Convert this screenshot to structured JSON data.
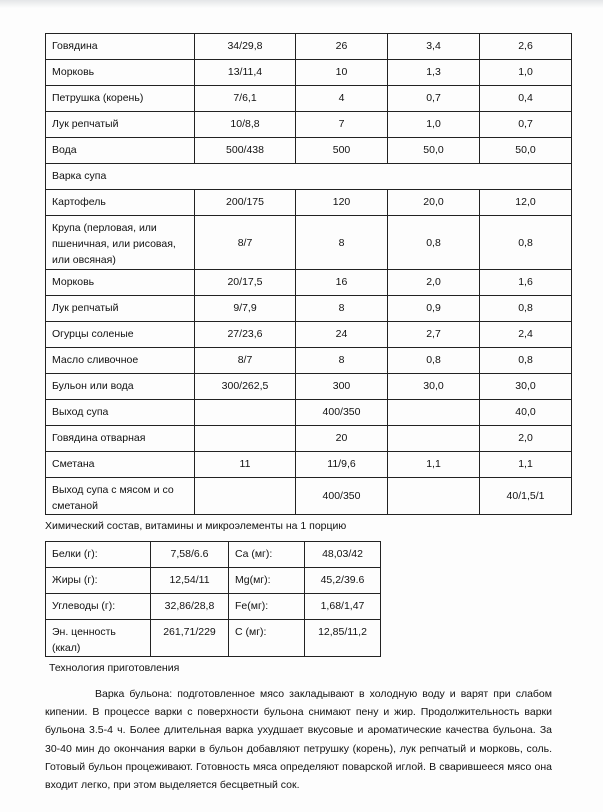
{
  "main_table": {
    "rows": [
      {
        "name": "Говядина",
        "brutto_netto": "34/29,8",
        "v1": "26",
        "v2": "3,4",
        "v3": "2,6"
      },
      {
        "name": "Морковь",
        "brutto_netto": "13/11,4",
        "v1": "10",
        "v2": "1,3",
        "v3": "1,0"
      },
      {
        "name": "Петрушка (корень)",
        "brutto_netto": "7/6,1",
        "v1": "4",
        "v2": "0,7",
        "v3": "0,4"
      },
      {
        "name": "Лук репчатый",
        "brutto_netto": "10/8,8",
        "v1": "7",
        "v2": "1,0",
        "v3": "0,7"
      },
      {
        "name": "Вода",
        "brutto_netto": "500/438",
        "v1": "500",
        "v2": "50,0",
        "v3": "50,0"
      },
      {
        "section": "Варка супа"
      },
      {
        "name": "Картофель",
        "brutto_netto": "200/175",
        "v1": "120",
        "v2": "20,0",
        "v3": "12,0"
      },
      {
        "name": "Крупа (перловая, или пшеничная, или рисовая, или овсяная)",
        "brutto_netto": "8/7",
        "v1": "8",
        "v2": "0,8",
        "v3": "0,8"
      },
      {
        "name": "Морковь",
        "brutto_netto": "20/17,5",
        "v1": "16",
        "v2": "2,0",
        "v3": "1,6"
      },
      {
        "name": "Лук репчатый",
        "brutto_netto": "9/7,9",
        "v1": "8",
        "v2": "0,9",
        "v3": "0,8"
      },
      {
        "name": "Огурцы соленые",
        "brutto_netto": "27/23,6",
        "v1": "24",
        "v2": "2,7",
        "v3": "2,4"
      },
      {
        "name": "Масло сливочное",
        "brutto_netto": "8/7",
        "v1": "8",
        "v2": "0,8",
        "v3": "0,8"
      },
      {
        "name": "Бульон или вода",
        "brutto_netto": "300/262,5",
        "v1": "300",
        "v2": "30,0",
        "v3": "30,0"
      },
      {
        "name": "Выход супа",
        "brutto_netto": "",
        "v1": "400/350",
        "v2": "",
        "v3": "40,0"
      },
      {
        "name": "Говядина отварная",
        "brutto_netto": "",
        "v1": "20",
        "v2": "",
        "v3": "2,0"
      },
      {
        "name": "Сметана",
        "brutto_netto": "11",
        "v1": "11/9,6",
        "v2": "1,1",
        "v3": "1,1"
      },
      {
        "name": "Выход супа с мясом и со сметаной",
        "brutto_netto": "",
        "v1": "400/350",
        "v2": "",
        "v3": "40/1,5/1"
      }
    ]
  },
  "chem_caption": "Химический состав, витамины и микроэлементы на 1 порцию",
  "chem_table": [
    {
      "l1": "Белки (г):",
      "v1": "7,58/6.6",
      "l2": "Ca (мг):",
      "v2": "48,03/42"
    },
    {
      "l1": "Жиры (г):",
      "v1": "12,54/11",
      "l2": "Mg(мг):",
      "v2": "45,2/39.6"
    },
    {
      "l1": "Углеводы (г):",
      "v1": "32,86/28,8",
      "l2": "Fe(мг):",
      "v2": "1,68/1,47"
    },
    {
      "l1": "Эн. ценность (ккал)",
      "v1": "261,71/229",
      "l2": "C (мг):",
      "v2": "12,85/11,2"
    }
  ],
  "tech_heading": "Технология приготовления",
  "tech_text": "Варка бульона:  подготовленное мясо закладывают в холодную воду и варят при слабом кипении. В процессе варки с поверхности бульона снимают пену и жир. Продолжительность варки бульона 3.5-4 ч. Более длительная варка ухудшает вкусовые и ароматические качества бульона. За 30-40 мин до окончания варки в бульон добавляют петрушку (корень), лук репчатый и морковь, соль. Готовый бульон процеживают. Готовность мяса определяют поварской иглой. В сварившееся мясо она входит легко, при этом выделяется бесцветный сок."
}
